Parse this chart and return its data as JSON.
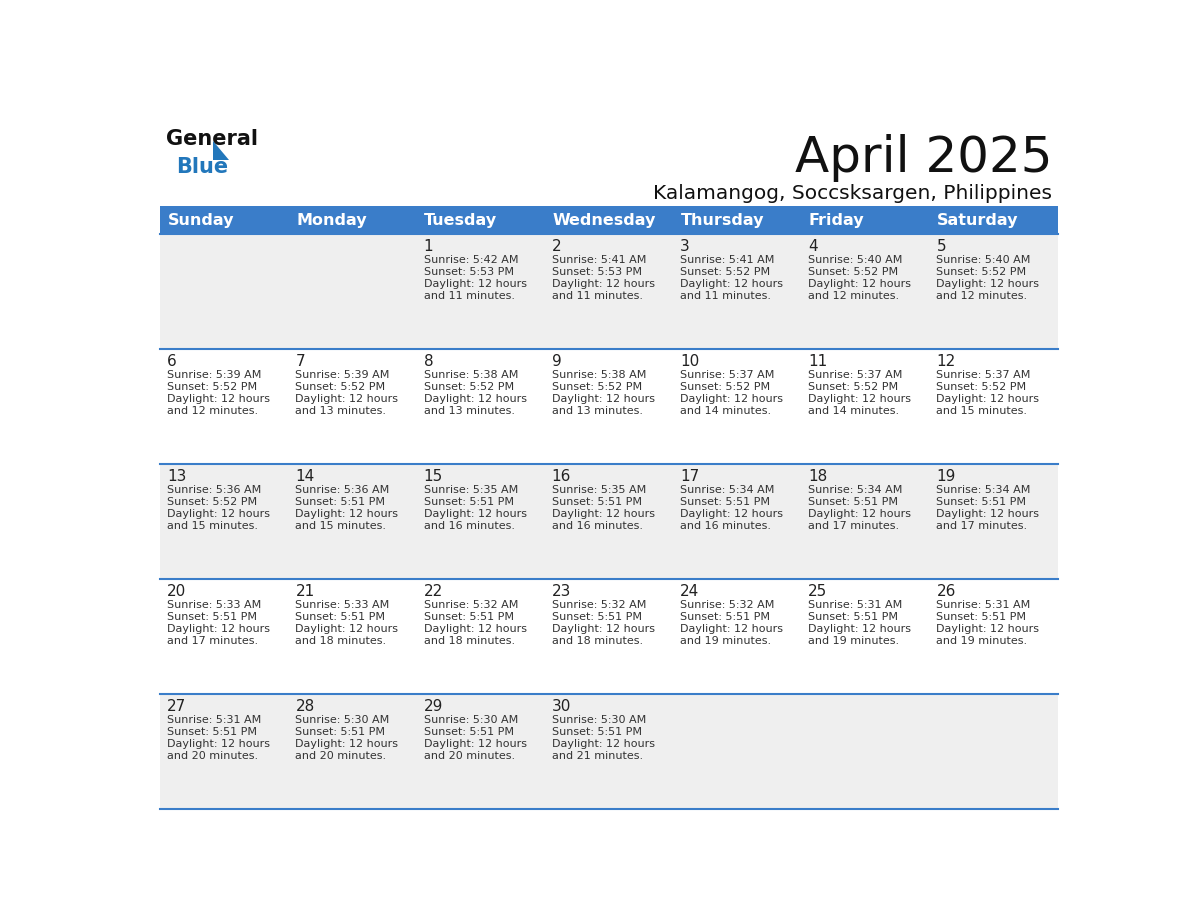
{
  "title": "April 2025",
  "subtitle": "Kalamangog, Soccsksargen, Philippines",
  "header_bg": "#3A7DC9",
  "header_text": "#FFFFFF",
  "weekdays": [
    "Sunday",
    "Monday",
    "Tuesday",
    "Wednesday",
    "Thursday",
    "Friday",
    "Saturday"
  ],
  "row_bg_odd": "#EFEFEF",
  "row_bg_even": "#FFFFFF",
  "cell_text_color": "#333333",
  "day_number_color": "#222222",
  "separator_color": "#3A7DC9",
  "logo_color_general": "#111111",
  "logo_color_blue": "#2277BB",
  "weeks": [
    {
      "days": [
        {
          "day": null,
          "sunrise": null,
          "sunset": null,
          "daylight": null
        },
        {
          "day": null,
          "sunrise": null,
          "sunset": null,
          "daylight": null
        },
        {
          "day": 1,
          "sunrise": "5:42 AM",
          "sunset": "5:53 PM",
          "daylight": "12 hours and 11 minutes"
        },
        {
          "day": 2,
          "sunrise": "5:41 AM",
          "sunset": "5:53 PM",
          "daylight": "12 hours and 11 minutes"
        },
        {
          "day": 3,
          "sunrise": "5:41 AM",
          "sunset": "5:52 PM",
          "daylight": "12 hours and 11 minutes"
        },
        {
          "day": 4,
          "sunrise": "5:40 AM",
          "sunset": "5:52 PM",
          "daylight": "12 hours and 12 minutes"
        },
        {
          "day": 5,
          "sunrise": "5:40 AM",
          "sunset": "5:52 PM",
          "daylight": "12 hours and 12 minutes"
        }
      ]
    },
    {
      "days": [
        {
          "day": 6,
          "sunrise": "5:39 AM",
          "sunset": "5:52 PM",
          "daylight": "12 hours and 12 minutes"
        },
        {
          "day": 7,
          "sunrise": "5:39 AM",
          "sunset": "5:52 PM",
          "daylight": "12 hours and 13 minutes"
        },
        {
          "day": 8,
          "sunrise": "5:38 AM",
          "sunset": "5:52 PM",
          "daylight": "12 hours and 13 minutes"
        },
        {
          "day": 9,
          "sunrise": "5:38 AM",
          "sunset": "5:52 PM",
          "daylight": "12 hours and 13 minutes"
        },
        {
          "day": 10,
          "sunrise": "5:37 AM",
          "sunset": "5:52 PM",
          "daylight": "12 hours and 14 minutes"
        },
        {
          "day": 11,
          "sunrise": "5:37 AM",
          "sunset": "5:52 PM",
          "daylight": "12 hours and 14 minutes"
        },
        {
          "day": 12,
          "sunrise": "5:37 AM",
          "sunset": "5:52 PM",
          "daylight": "12 hours and 15 minutes"
        }
      ]
    },
    {
      "days": [
        {
          "day": 13,
          "sunrise": "5:36 AM",
          "sunset": "5:52 PM",
          "daylight": "12 hours and 15 minutes"
        },
        {
          "day": 14,
          "sunrise": "5:36 AM",
          "sunset": "5:51 PM",
          "daylight": "12 hours and 15 minutes"
        },
        {
          "day": 15,
          "sunrise": "5:35 AM",
          "sunset": "5:51 PM",
          "daylight": "12 hours and 16 minutes"
        },
        {
          "day": 16,
          "sunrise": "5:35 AM",
          "sunset": "5:51 PM",
          "daylight": "12 hours and 16 minutes"
        },
        {
          "day": 17,
          "sunrise": "5:34 AM",
          "sunset": "5:51 PM",
          "daylight": "12 hours and 16 minutes"
        },
        {
          "day": 18,
          "sunrise": "5:34 AM",
          "sunset": "5:51 PM",
          "daylight": "12 hours and 17 minutes"
        },
        {
          "day": 19,
          "sunrise": "5:34 AM",
          "sunset": "5:51 PM",
          "daylight": "12 hours and 17 minutes"
        }
      ]
    },
    {
      "days": [
        {
          "day": 20,
          "sunrise": "5:33 AM",
          "sunset": "5:51 PM",
          "daylight": "12 hours and 17 minutes"
        },
        {
          "day": 21,
          "sunrise": "5:33 AM",
          "sunset": "5:51 PM",
          "daylight": "12 hours and 18 minutes"
        },
        {
          "day": 22,
          "sunrise": "5:32 AM",
          "sunset": "5:51 PM",
          "daylight": "12 hours and 18 minutes"
        },
        {
          "day": 23,
          "sunrise": "5:32 AM",
          "sunset": "5:51 PM",
          "daylight": "12 hours and 18 minutes"
        },
        {
          "day": 24,
          "sunrise": "5:32 AM",
          "sunset": "5:51 PM",
          "daylight": "12 hours and 19 minutes"
        },
        {
          "day": 25,
          "sunrise": "5:31 AM",
          "sunset": "5:51 PM",
          "daylight": "12 hours and 19 minutes"
        },
        {
          "day": 26,
          "sunrise": "5:31 AM",
          "sunset": "5:51 PM",
          "daylight": "12 hours and 19 minutes"
        }
      ]
    },
    {
      "days": [
        {
          "day": 27,
          "sunrise": "5:31 AM",
          "sunset": "5:51 PM",
          "daylight": "12 hours and 20 minutes"
        },
        {
          "day": 28,
          "sunrise": "5:30 AM",
          "sunset": "5:51 PM",
          "daylight": "12 hours and 20 minutes"
        },
        {
          "day": 29,
          "sunrise": "5:30 AM",
          "sunset": "5:51 PM",
          "daylight": "12 hours and 20 minutes"
        },
        {
          "day": 30,
          "sunrise": "5:30 AM",
          "sunset": "5:51 PM",
          "daylight": "12 hours and 21 minutes"
        },
        {
          "day": null,
          "sunrise": null,
          "sunset": null,
          "daylight": null
        },
        {
          "day": null,
          "sunrise": null,
          "sunset": null,
          "daylight": null
        },
        {
          "day": null,
          "sunrise": null,
          "sunset": null,
          "daylight": null
        }
      ]
    }
  ]
}
